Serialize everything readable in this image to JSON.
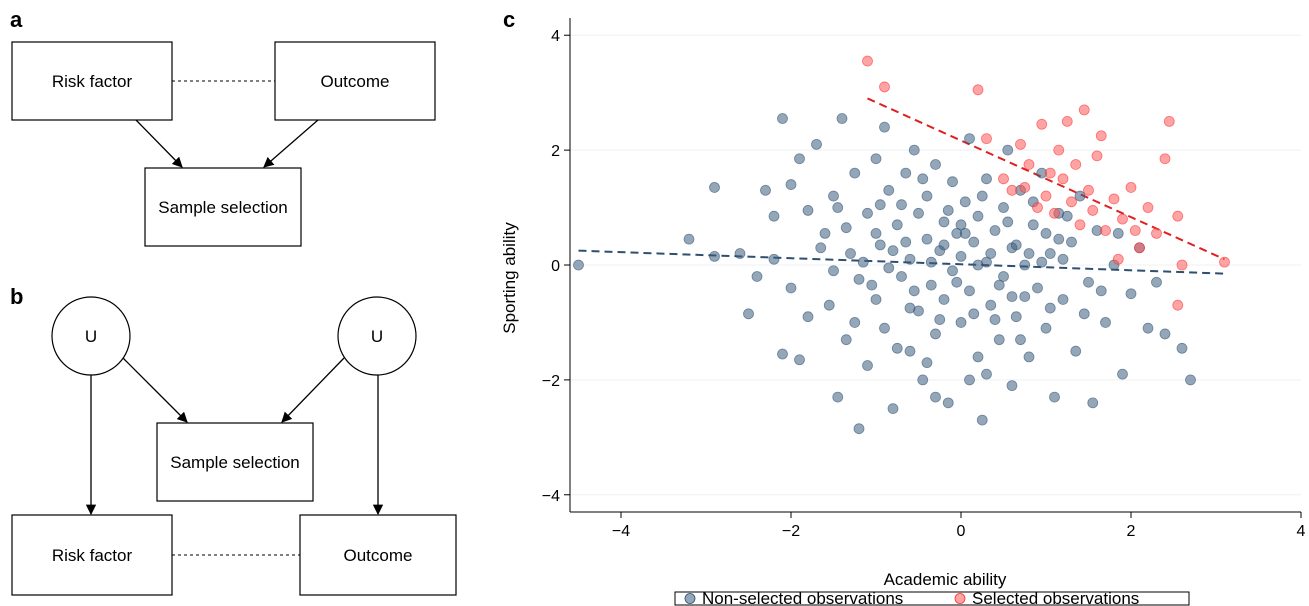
{
  "panels": {
    "a": {
      "letter": "a",
      "risk_factor": "Risk factor",
      "outcome": "Outcome",
      "sample_selection": "Sample selection"
    },
    "b": {
      "letter": "b",
      "u_left": "U",
      "u_right": "U",
      "sample_selection": "Sample selection",
      "risk_factor": "Risk factor",
      "outcome": "Outcome"
    },
    "c": {
      "letter": "c"
    }
  },
  "chart_data": {
    "type": "scatter",
    "title": "",
    "xlabel": "Academic ability",
    "ylabel": "Sporting ability",
    "xlim": [
      -4.6,
      4
    ],
    "ylim": [
      -4.3,
      4.3
    ],
    "xticks": [
      -4,
      -2,
      0,
      2,
      4
    ],
    "yticks": [
      -4,
      -2,
      0,
      2,
      4
    ],
    "xtick_labels": [
      "−4",
      "−2",
      "0",
      "2",
      "4"
    ],
    "ytick_labels": [
      "−4",
      "−2",
      "0",
      "2",
      "4"
    ],
    "grid": "horizontal",
    "legend_position": "bottom",
    "colors": {
      "non_selected": "#3d5e80",
      "selected": "#ff5a5a",
      "non_selected_line": "#2f4f70",
      "selected_line": "#e02020"
    },
    "series": [
      {
        "name": "Non-selected observations",
        "points": [
          [
            -4.5,
            0.0
          ],
          [
            -3.2,
            0.45
          ],
          [
            -2.9,
            1.35
          ],
          [
            -2.9,
            0.15
          ],
          [
            -2.6,
            0.2
          ],
          [
            -2.5,
            -0.85
          ],
          [
            -2.3,
            1.3
          ],
          [
            -2.2,
            0.85
          ],
          [
            -2.1,
            2.55
          ],
          [
            -2.1,
            -1.55
          ],
          [
            -2.0,
            -0.4
          ],
          [
            -1.9,
            1.85
          ],
          [
            -1.9,
            -1.65
          ],
          [
            -1.8,
            0.95
          ],
          [
            -1.7,
            2.1
          ],
          [
            -1.6,
            0.55
          ],
          [
            -1.55,
            -0.7
          ],
          [
            -1.5,
            1.2
          ],
          [
            -1.45,
            -2.3
          ],
          [
            -1.4,
            2.55
          ],
          [
            -1.35,
            -1.3
          ],
          [
            -1.3,
            0.2
          ],
          [
            -1.25,
            1.6
          ],
          [
            -1.2,
            -0.25
          ],
          [
            -1.2,
            -2.85
          ],
          [
            -1.1,
            0.9
          ],
          [
            -1.1,
            -1.75
          ],
          [
            -1.0,
            1.85
          ],
          [
            -1.0,
            -0.6
          ],
          [
            -0.95,
            0.35
          ],
          [
            -0.9,
            2.4
          ],
          [
            -0.9,
            -1.1
          ],
          [
            -0.85,
            1.3
          ],
          [
            -0.8,
            -2.5
          ],
          [
            -0.75,
            0.7
          ],
          [
            -0.7,
            -0.2
          ],
          [
            -0.65,
            1.6
          ],
          [
            -0.6,
            -1.5
          ],
          [
            -0.6,
            0.1
          ],
          [
            -0.55,
            2.0
          ],
          [
            -0.5,
            -0.8
          ],
          [
            -0.5,
            0.9
          ],
          [
            -0.45,
            -2.0
          ],
          [
            -0.4,
            0.45
          ],
          [
            -0.4,
            1.2
          ],
          [
            -0.35,
            -0.35
          ],
          [
            -0.3,
            -1.2
          ],
          [
            -0.3,
            1.75
          ],
          [
            -0.25,
            0.25
          ],
          [
            -0.2,
            -0.6
          ],
          [
            -0.2,
            0.75
          ],
          [
            -0.15,
            -2.4
          ],
          [
            -0.1,
            1.45
          ],
          [
            -0.1,
            -0.1
          ],
          [
            -0.05,
            0.55
          ],
          [
            0.0,
            -1.0
          ],
          [
            0.0,
            0.15
          ],
          [
            0.05,
            1.1
          ],
          [
            0.1,
            -0.45
          ],
          [
            0.1,
            2.2
          ],
          [
            0.15,
            0.4
          ],
          [
            0.2,
            -1.6
          ],
          [
            0.2,
            0.85
          ],
          [
            0.25,
            -2.7
          ],
          [
            0.3,
            0.05
          ],
          [
            0.3,
            1.5
          ],
          [
            0.35,
            -0.7
          ],
          [
            0.4,
            0.6
          ],
          [
            0.45,
            -1.3
          ],
          [
            0.5,
            1.0
          ],
          [
            0.5,
            -0.2
          ],
          [
            0.55,
            2.0
          ],
          [
            0.6,
            0.3
          ],
          [
            0.6,
            -2.1
          ],
          [
            0.65,
            -0.9
          ],
          [
            0.7,
            1.3
          ],
          [
            0.75,
            0.0
          ],
          [
            0.8,
            -1.6
          ],
          [
            0.85,
            0.7
          ],
          [
            0.9,
            -0.4
          ],
          [
            0.95,
            1.6
          ],
          [
            1.0,
            -1.1
          ],
          [
            1.05,
            0.2
          ],
          [
            1.1,
            -2.3
          ],
          [
            1.15,
            0.9
          ],
          [
            1.2,
            -0.6
          ],
          [
            1.3,
            0.4
          ],
          [
            1.35,
            -1.5
          ],
          [
            1.4,
            1.2
          ],
          [
            1.5,
            -0.3
          ],
          [
            1.55,
            -2.4
          ],
          [
            1.6,
            0.6
          ],
          [
            1.7,
            -1.0
          ],
          [
            1.8,
            0.0
          ],
          [
            1.9,
            -1.9
          ],
          [
            2.0,
            -0.5
          ],
          [
            2.1,
            0.3
          ],
          [
            2.2,
            -1.1
          ],
          [
            2.3,
            -0.3
          ],
          [
            2.4,
            -1.2
          ],
          [
            2.6,
            -1.45
          ],
          [
            2.7,
            -2.0
          ],
          [
            -2.4,
            -0.2
          ],
          [
            -2.2,
            0.1
          ],
          [
            -2.0,
            1.4
          ],
          [
            -1.8,
            -0.9
          ],
          [
            -1.65,
            0.3
          ],
          [
            -1.5,
            -0.1
          ],
          [
            -1.35,
            0.65
          ],
          [
            -1.25,
            -1.0
          ],
          [
            -1.15,
            0.05
          ],
          [
            -1.05,
            -0.35
          ],
          [
            -0.95,
            1.05
          ],
          [
            -0.85,
            -0.05
          ],
          [
            -0.75,
            -1.45
          ],
          [
            -0.65,
            0.4
          ],
          [
            -0.55,
            -0.45
          ],
          [
            -0.45,
            1.5
          ],
          [
            -0.35,
            0.05
          ],
          [
            -0.25,
            -0.95
          ],
          [
            -0.15,
            0.95
          ],
          [
            -0.05,
            -0.3
          ],
          [
            0.05,
            0.55
          ],
          [
            0.15,
            -0.85
          ],
          [
            0.25,
            1.2
          ],
          [
            0.35,
            0.2
          ],
          [
            0.45,
            -0.35
          ],
          [
            0.55,
            0.75
          ],
          [
            0.65,
            0.35
          ],
          [
            0.75,
            -0.55
          ],
          [
            0.85,
            1.1
          ],
          [
            0.95,
            0.05
          ],
          [
            1.05,
            -0.75
          ],
          [
            1.15,
            0.45
          ],
          [
            1.25,
            0.85
          ],
          [
            1.45,
            -0.85
          ],
          [
            1.65,
            -0.45
          ],
          [
            1.85,
            0.55
          ],
          [
            -1.0,
            0.55
          ],
          [
            -0.8,
            0.25
          ],
          [
            -0.6,
            -0.75
          ],
          [
            -0.4,
            -1.7
          ],
          [
            -0.2,
            0.35
          ],
          [
            0.0,
            0.7
          ],
          [
            0.2,
            0.0
          ],
          [
            0.4,
            -0.95
          ],
          [
            0.6,
            -0.55
          ],
          [
            0.8,
            0.2
          ],
          [
            1.0,
            0.55
          ],
          [
            1.2,
            0.1
          ],
          [
            -1.45,
            1.0
          ],
          [
            -0.7,
            1.05
          ],
          [
            0.3,
            -1.9
          ],
          [
            0.7,
            -1.3
          ],
          [
            -0.3,
            -2.3
          ],
          [
            0.1,
            -2.0
          ]
        ]
      },
      {
        "name": "Selected observations",
        "points": [
          [
            -1.1,
            3.55
          ],
          [
            -0.9,
            3.1
          ],
          [
            0.2,
            3.05
          ],
          [
            0.3,
            2.2
          ],
          [
            0.6,
            1.3
          ],
          [
            0.7,
            2.1
          ],
          [
            0.8,
            1.75
          ],
          [
            0.9,
            1.0
          ],
          [
            0.95,
            2.45
          ],
          [
            1.0,
            1.2
          ],
          [
            1.1,
            0.9
          ],
          [
            1.2,
            1.5
          ],
          [
            1.25,
            2.5
          ],
          [
            1.3,
            1.1
          ],
          [
            1.4,
            0.7
          ],
          [
            1.45,
            2.7
          ],
          [
            1.5,
            1.3
          ],
          [
            1.6,
            1.9
          ],
          [
            1.65,
            2.25
          ],
          [
            1.7,
            0.6
          ],
          [
            1.8,
            1.15
          ],
          [
            1.9,
            0.8
          ],
          [
            2.0,
            1.35
          ],
          [
            2.1,
            0.3
          ],
          [
            2.2,
            1.0
          ],
          [
            2.3,
            0.55
          ],
          [
            2.4,
            1.85
          ],
          [
            2.45,
            2.5
          ],
          [
            2.55,
            0.85
          ],
          [
            2.6,
            0.0
          ],
          [
            3.1,
            0.05
          ],
          [
            2.55,
            -0.7
          ],
          [
            1.15,
            2.0
          ],
          [
            0.5,
            1.5
          ],
          [
            0.75,
            1.35
          ],
          [
            1.35,
            1.75
          ],
          [
            1.55,
            0.95
          ],
          [
            1.85,
            0.1
          ],
          [
            2.05,
            0.6
          ],
          [
            1.05,
            1.6
          ]
        ]
      }
    ],
    "fit_lines": [
      {
        "series": "Non-selected observations",
        "x": [
          -4.5,
          3.1
        ],
        "y": [
          0.25,
          -0.15
        ]
      },
      {
        "series": "Selected observations",
        "x": [
          -1.1,
          3.1
        ],
        "y": [
          2.9,
          0.1
        ]
      }
    ]
  }
}
